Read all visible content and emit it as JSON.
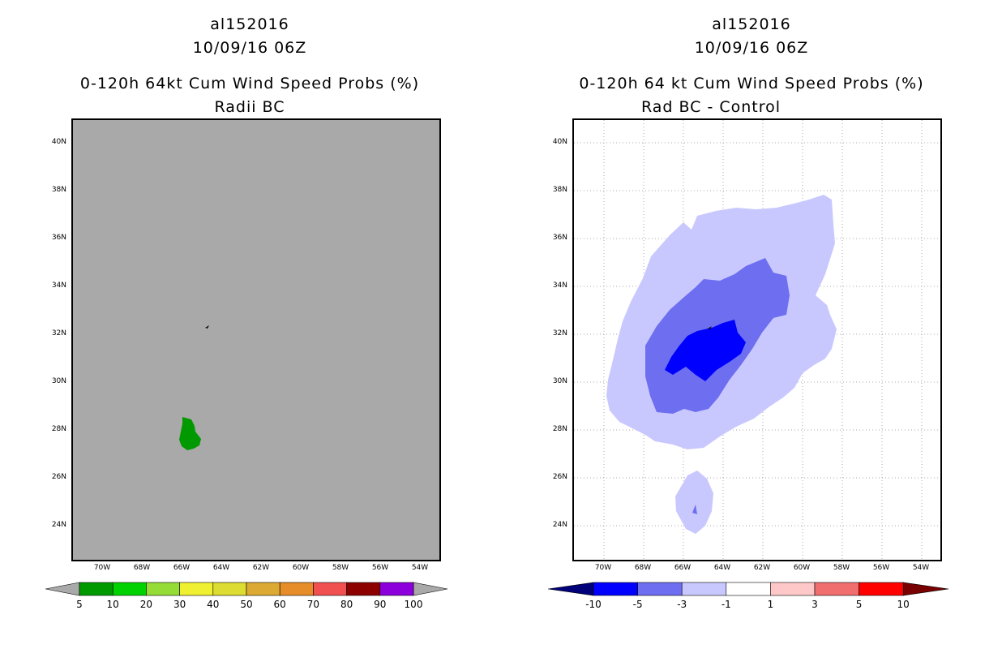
{
  "left_panel": {
    "title_storm": "al152016",
    "title_date": "10/09/16 06Z",
    "title_product": "0-120h 64kt Cum Wind Speed Probs (%)",
    "title_run": "Radii BC",
    "background": "#a9a9a9",
    "colorbar": {
      "labels": [
        "5",
        "10",
        "20",
        "30",
        "40",
        "50",
        "60",
        "70",
        "80",
        "90",
        "100"
      ],
      "colors": [
        "#009a00",
        "#00d200",
        "#96dc37",
        "#f0f032",
        "#dcdc32",
        "#dcaa32",
        "#e68c28",
        "#f05050",
        "#8c0000",
        "#8c00dc"
      ],
      "under_color": "#a9a9a9",
      "over_color": "#a9a9a9"
    },
    "features": [
      "green-prob-area",
      "island-marker"
    ]
  },
  "right_panel": {
    "title_storm": "al152016",
    "title_date": "10/09/16 06Z",
    "title_product": "0-120h 64 kt Cum Wind Speed Probs (%)",
    "title_run": "Rad BC - Control",
    "colorbar": {
      "labels": [
        "-10",
        "-5",
        "-3",
        "-1",
        "1",
        "3",
        "5",
        "10"
      ],
      "colors": [
        "#0000ff",
        "#6e6ef0",
        "#c8c8ff",
        "#ffffff",
        "#ffc8c8",
        "#f06e6e",
        "#ff0000"
      ],
      "under_color": "#000078",
      "over_color": "#780000"
    }
  },
  "axes": {
    "lat_labels": [
      "40N",
      "38N",
      "36N",
      "34N",
      "32N",
      "30N",
      "28N",
      "26N",
      "24N"
    ],
    "lon_labels": [
      "70W",
      "68W",
      "66W",
      "64W",
      "62W",
      "60W",
      "58W",
      "56W",
      "54W"
    ]
  }
}
